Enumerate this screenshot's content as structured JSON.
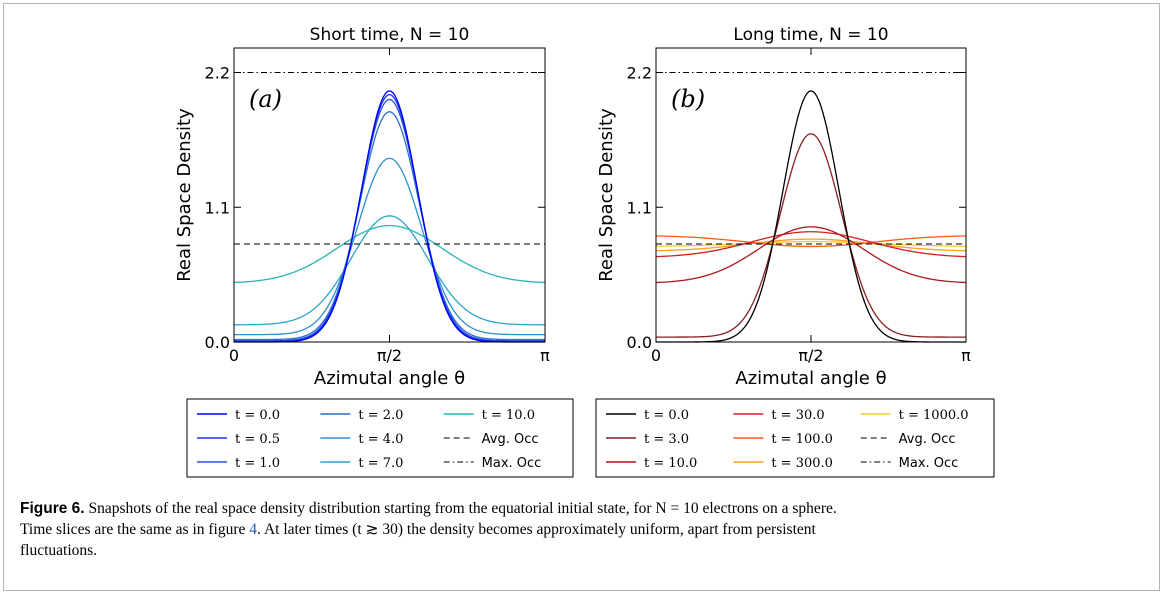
{
  "chart_data": [
    {
      "type": "line",
      "panel_label": "(a)",
      "title": "Short time, N = 10",
      "xlabel": "Azimutal angle θ",
      "ylabel": "Real Space Density",
      "xlim": [
        0,
        3.14159
      ],
      "ylim": [
        0,
        2.4
      ],
      "x_ticks": [
        {
          "value": 0,
          "label": "0"
        },
        {
          "value": 1.5708,
          "label": "π/2"
        },
        {
          "value": 3.14159,
          "label": "π"
        }
      ],
      "y_ticks": [
        {
          "value": 0,
          "label": "0.0"
        },
        {
          "value": 1.1,
          "label": "1.1"
        },
        {
          "value": 2.2,
          "label": "2.2"
        }
      ],
      "reference_lines": [
        {
          "name": "Avg. Occ",
          "y": 0.8,
          "style": "dashed"
        },
        {
          "name": "Max. Occ",
          "y": 2.2,
          "style": "dashdot"
        }
      ],
      "series": [
        {
          "name": "t = 0.0",
          "color": "#0000ff",
          "peak": 2.05,
          "flat": 0.0,
          "width": 0.4
        },
        {
          "name": "t = 0.5",
          "color": "#1f33f0",
          "peak": 2.02,
          "flat": 0.005,
          "width": 0.405
        },
        {
          "name": "t = 1.0",
          "color": "#2b55d8",
          "peak": 1.98,
          "flat": 0.01,
          "width": 0.41
        },
        {
          "name": "t = 2.0",
          "color": "#2c6fcc",
          "peak": 1.88,
          "flat": 0.02,
          "width": 0.42
        },
        {
          "name": "t = 4.0",
          "color": "#2f8fcf",
          "peak": 1.5,
          "flat": 0.06,
          "width": 0.46
        },
        {
          "name": "t = 7.0",
          "color": "#2aa6c8",
          "peak": 1.03,
          "flat": 0.14,
          "width": 0.55
        },
        {
          "name": "t = 10.0",
          "color": "#26b5b5",
          "peak": 0.95,
          "flat": 0.48,
          "width": 0.75
        }
      ]
    },
    {
      "type": "line",
      "panel_label": "(b)",
      "title": "Long time, N = 10",
      "xlabel": "Azimutal angle θ",
      "ylabel": "Real Space Density",
      "xlim": [
        0,
        3.14159
      ],
      "ylim": [
        0,
        2.4
      ],
      "x_ticks": [
        {
          "value": 0,
          "label": "0"
        },
        {
          "value": 1.5708,
          "label": "π/2"
        },
        {
          "value": 3.14159,
          "label": "π"
        }
      ],
      "y_ticks": [
        {
          "value": 0,
          "label": "0.0"
        },
        {
          "value": 1.1,
          "label": "1.1"
        },
        {
          "value": 2.2,
          "label": "2.2"
        }
      ],
      "reference_lines": [
        {
          "name": "Avg. Occ",
          "y": 0.8,
          "style": "dashed"
        },
        {
          "name": "Max. Occ",
          "y": 2.2,
          "style": "dashdot"
        }
      ],
      "series": [
        {
          "name": "t = 0.0",
          "color": "#000000",
          "peak": 2.05,
          "flat": 0.0,
          "width": 0.4
        },
        {
          "name": "t = 3.0",
          "color": "#8a1f1f",
          "peak": 1.7,
          "flat": 0.04,
          "width": 0.44
        },
        {
          "name": "t = 10.0",
          "color": "#b0171f",
          "peak": 0.94,
          "flat": 0.48,
          "width": 0.75
        },
        {
          "name": "t = 30.0",
          "color": "#d62020",
          "peak": 0.9,
          "flat": 0.69,
          "width": 0.85
        },
        {
          "name": "t = 100.0",
          "color": "#ff5a1e",
          "peak": 0.78,
          "flat": 0.87,
          "width": 0.9
        },
        {
          "name": "t = 300.0",
          "color": "#ffa020",
          "peak": 0.84,
          "flat": 0.74,
          "width": 0.9
        },
        {
          "name": "t = 1000.0",
          "color": "#f2cc30",
          "peak": 0.82,
          "flat": 0.78,
          "width": 0.9
        }
      ]
    }
  ],
  "legends": [
    {
      "rows": [
        [
          "t = 0.0",
          "t = 2.0",
          "t = 10.0"
        ],
        [
          "t = 0.5",
          "t = 4.0",
          "Avg. Occ"
        ],
        [
          "t = 1.0",
          "t = 7.0",
          "Max. Occ"
        ]
      ]
    },
    {
      "rows": [
        [
          "t = 0.0",
          "t = 30.0",
          "t = 1000.0"
        ],
        [
          "t = 3.0",
          "t = 100.0",
          "Avg. Occ"
        ],
        [
          "t = 10.0",
          "t = 300.0",
          "Max. Occ"
        ]
      ]
    }
  ],
  "caption": {
    "label": "Figure 6.",
    "text_1": " Snapshots of the real space density distribution starting from the equatorial initial state, for N = 10 electrons on a sphere.",
    "text_2": "Time slices are the same as in figure ",
    "ref": "4",
    "text_3": ". At later times (t ≳ 30) the density becomes approximately uniform, apart from persistent",
    "text_4": "fluctuations."
  }
}
